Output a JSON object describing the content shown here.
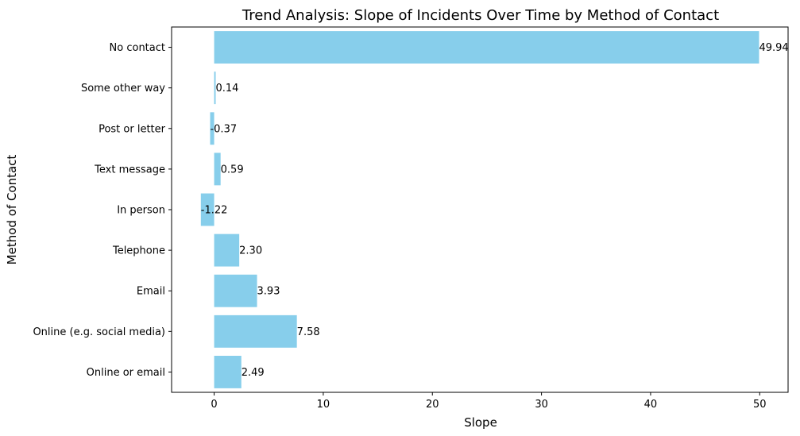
{
  "chart_data": {
    "type": "bar",
    "orientation": "horizontal",
    "title": "Trend Analysis: Slope of Incidents Over Time by Method of Contact",
    "xlabel": "Slope",
    "ylabel": "Method of Contact",
    "categories": [
      "Online or email",
      "Online (e.g. social media)",
      "Email",
      "Telephone",
      "In person",
      "Text message",
      "Post or letter",
      "Some other way",
      "No contact"
    ],
    "values": [
      2.49,
      7.58,
      3.93,
      2.3,
      -1.22,
      0.59,
      -0.37,
      0.14,
      49.94
    ],
    "value_labels": [
      "2.49",
      "7.58",
      "3.93",
      "2.30",
      "-1.22",
      "0.59",
      "-0.37",
      "0.14",
      "49.94"
    ],
    "xlim": [
      -3.9,
      52.6
    ],
    "xticks": [
      0,
      10,
      20,
      30,
      40,
      50
    ],
    "xtick_labels": [
      "0",
      "10",
      "20",
      "30",
      "40",
      "50"
    ],
    "bar_color": "#87ceeb",
    "grid": false,
    "legend": "none"
  }
}
